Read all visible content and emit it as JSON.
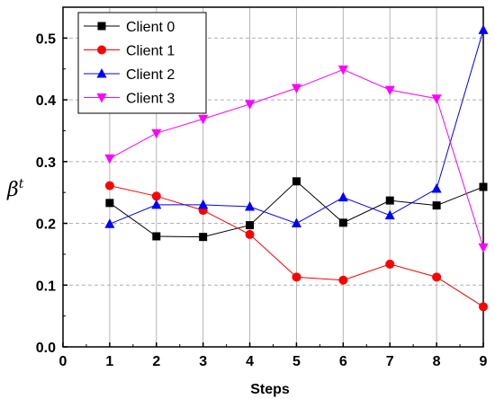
{
  "chart_data": {
    "type": "line",
    "title": "",
    "xlabel": "Steps",
    "ylabel": "β",
    "ylabel_sup": "t",
    "xlim": [
      0,
      9
    ],
    "ylim": [
      0.0,
      0.55
    ],
    "x_ticks": [
      "0",
      "1",
      "2",
      "3",
      "4",
      "5",
      "6",
      "7",
      "8",
      "9"
    ],
    "y_ticks": [
      "0.0",
      "0.1",
      "0.2",
      "0.3",
      "0.4",
      "0.5"
    ],
    "x_grid": true,
    "y_grid": "dashed",
    "legend_position": "top-left",
    "x": [
      1,
      2,
      3,
      4,
      5,
      6,
      7,
      8,
      9
    ],
    "series": [
      {
        "name": "Client 0",
        "color": "#000000",
        "marker": "square",
        "values": [
          0.233,
          0.179,
          0.178,
          0.197,
          0.268,
          0.201,
          0.237,
          0.229,
          0.259
        ]
      },
      {
        "name": "Client 1",
        "color": "#ff0000",
        "marker": "circle",
        "values": [
          0.261,
          0.244,
          0.221,
          0.182,
          0.113,
          0.108,
          0.134,
          0.113,
          0.065
        ]
      },
      {
        "name": "Client 2",
        "color": "#0000ff",
        "marker": "triangle-up",
        "values": [
          0.199,
          0.23,
          0.23,
          0.227,
          0.2,
          0.242,
          0.213,
          0.256,
          0.513
        ]
      },
      {
        "name": "Client 3",
        "color": "#ff00ff",
        "marker": "triangle-down",
        "values": [
          0.305,
          0.346,
          0.369,
          0.393,
          0.419,
          0.449,
          0.416,
          0.402,
          0.161
        ]
      }
    ]
  }
}
